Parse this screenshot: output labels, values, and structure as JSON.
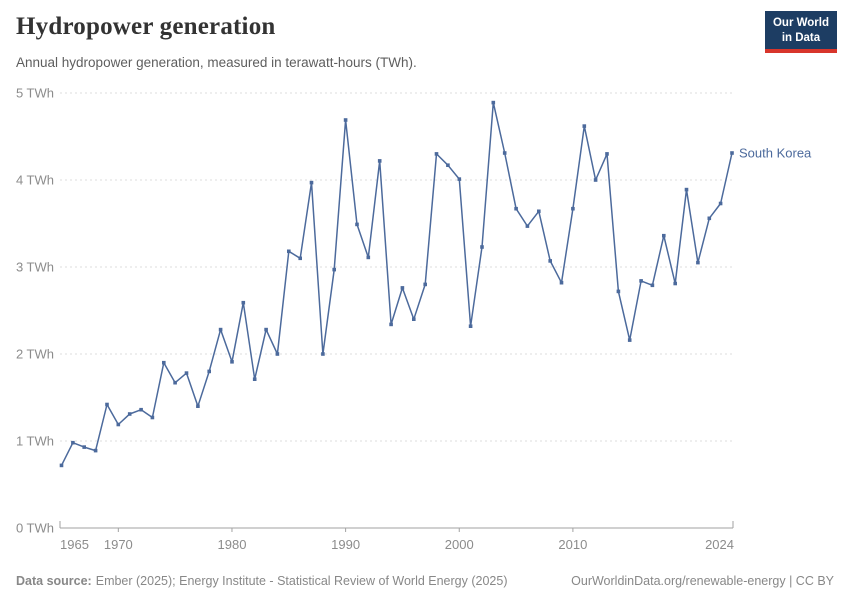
{
  "header": {
    "title": "Hydropower generation",
    "subtitle": "Annual hydropower generation, measured in terawatt-hours (TWh)."
  },
  "logo": {
    "line1": "Our World",
    "line2": "in Data"
  },
  "colors": {
    "line": "#4C6A9C",
    "grid": "#dedede",
    "axis": "#a2a2a2",
    "tick_text": "#8c8c8c",
    "logo_bg": "#1d3d63",
    "logo_red": "#d8352b"
  },
  "chart_data": {
    "type": "line",
    "title": "Hydropower generation",
    "subtitle": "Annual hydropower generation, measured in terawatt-hours (TWh).",
    "unit": "TWh",
    "xlabel": "",
    "ylabel": "TWh",
    "ylim": [
      0,
      5
    ],
    "grid": "horizontal-dashed",
    "legend_position": "end-of-line-label",
    "x": [
      1965,
      1966,
      1967,
      1968,
      1969,
      1970,
      1971,
      1972,
      1973,
      1974,
      1975,
      1976,
      1977,
      1978,
      1979,
      1980,
      1981,
      1982,
      1983,
      1984,
      1985,
      1986,
      1987,
      1988,
      1989,
      1990,
      1991,
      1992,
      1993,
      1994,
      1995,
      1996,
      1997,
      1998,
      1999,
      2000,
      2001,
      2002,
      2003,
      2004,
      2005,
      2006,
      2007,
      2008,
      2009,
      2010,
      2011,
      2012,
      2013,
      2014,
      2015,
      2016,
      2017,
      2018,
      2019,
      2020,
      2021,
      2022,
      2023,
      2024
    ],
    "series": [
      {
        "name": "South Korea",
        "values": [
          0.72,
          0.98,
          0.93,
          0.89,
          1.42,
          1.19,
          1.31,
          1.36,
          1.27,
          1.9,
          1.67,
          1.78,
          1.4,
          1.8,
          2.28,
          1.91,
          2.59,
          1.71,
          2.28,
          2.0,
          3.18,
          3.1,
          3.97,
          2.0,
          2.97,
          4.69,
          3.49,
          3.11,
          4.22,
          2.34,
          2.76,
          2.4,
          2.8,
          4.3,
          4.17,
          4.01,
          2.32,
          3.23,
          4.89,
          4.31,
          3.67,
          3.47,
          3.64,
          3.07,
          2.82,
          3.67,
          4.62,
          4.0,
          4.3,
          2.72,
          2.16,
          2.84,
          2.79,
          3.36,
          2.81,
          3.89,
          3.05,
          3.56,
          3.73,
          4.31
        ]
      }
    ],
    "y_ticks": [
      {
        "value": 0,
        "label": "0 TWh"
      },
      {
        "value": 1,
        "label": "1 TWh"
      },
      {
        "value": 2,
        "label": "2 TWh"
      },
      {
        "value": 3,
        "label": "3 TWh"
      },
      {
        "value": 4,
        "label": "4 TWh"
      },
      {
        "value": 5,
        "label": "5 TWh"
      }
    ],
    "x_ticks": [
      {
        "value": 1965,
        "label": "1965"
      },
      {
        "value": 1970,
        "label": "1970"
      },
      {
        "value": 1980,
        "label": "1980"
      },
      {
        "value": 1990,
        "label": "1990"
      },
      {
        "value": 2000,
        "label": "2000"
      },
      {
        "value": 2010,
        "label": "2010"
      },
      {
        "value": 2024,
        "label": "2024"
      }
    ]
  },
  "footer": {
    "source_label": "Data source:",
    "source_text": "Ember (2025); Energy Institute - Statistical Review of World Energy (2025)",
    "citation": "OurWorldinData.org/renewable-energy | CC BY"
  }
}
